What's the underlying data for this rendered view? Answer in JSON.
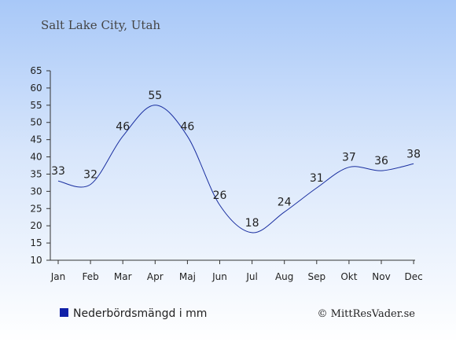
{
  "title": "Salt Lake City, Utah",
  "copyright": "© MittResVader.se",
  "colors": {
    "line": "#1a2fa0",
    "legend_marker": "#1020a8"
  },
  "chart_data": {
    "type": "line",
    "categories": [
      "Jan",
      "Feb",
      "Mar",
      "Apr",
      "Maj",
      "Jun",
      "Jul",
      "Aug",
      "Sep",
      "Okt",
      "Nov",
      "Dec"
    ],
    "series": [
      {
        "name": "Nederbördsmängd i mm",
        "values": [
          33,
          32,
          46,
          55,
          46,
          26,
          18,
          24,
          31,
          37,
          36,
          38
        ]
      }
    ],
    "y_ticks": [
      10,
      15,
      20,
      25,
      30,
      35,
      40,
      45,
      50,
      55,
      60,
      65
    ],
    "ylim": [
      10,
      65
    ],
    "grid": false,
    "legend": "bottom-left"
  }
}
